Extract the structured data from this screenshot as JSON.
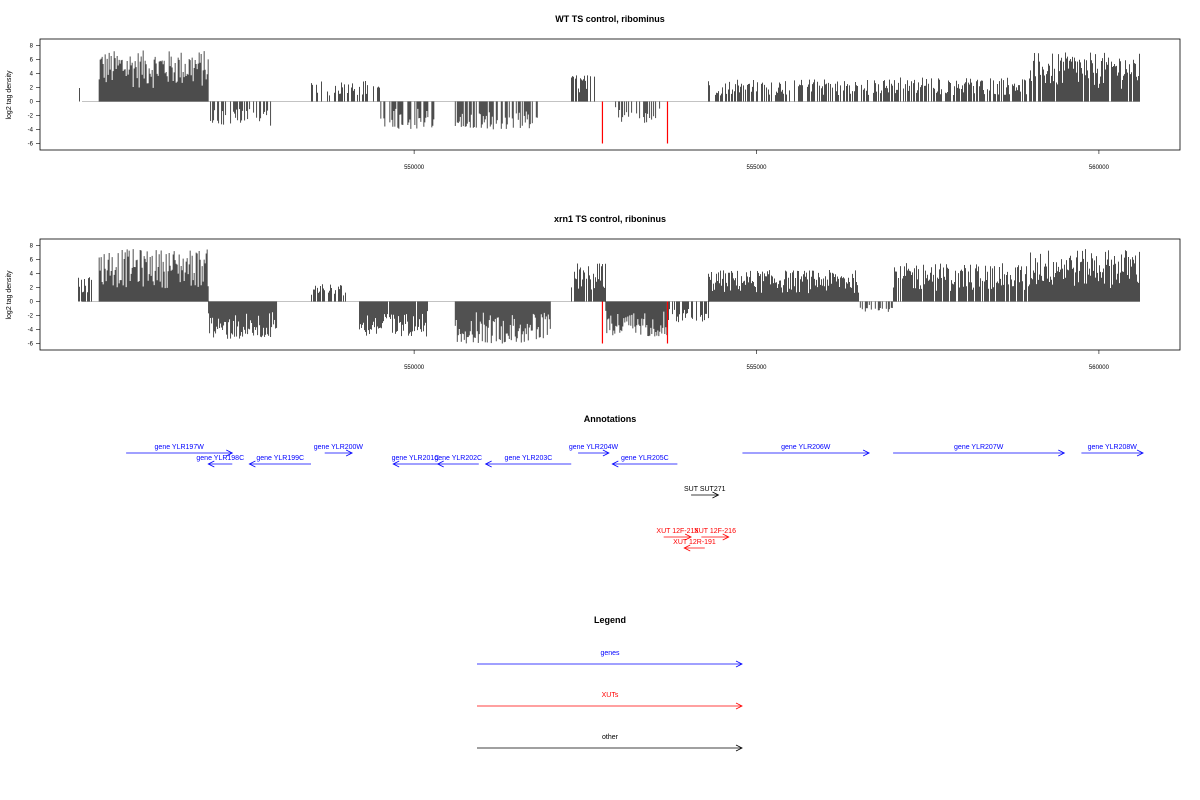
{
  "chart_data": [
    {
      "type": "bar",
      "title": "WT TS control, ribominus",
      "ylabel": "log2 tag density",
      "ylim": [
        -6.5,
        8.5
      ],
      "yticks": [
        -6,
        -4,
        -2,
        0,
        2,
        4,
        6,
        8
      ],
      "xlim": [
        544500,
        561100
      ],
      "xticks": [
        550000,
        555000,
        560000
      ],
      "xtick_labels": [
        "550000",
        "555000",
        "560000"
      ],
      "grid": false,
      "highlight_color": "#ff0000",
      "bar_color": "#000000",
      "highlights": [
        {
          "x": 552750,
          "y": -6
        },
        {
          "x": 553700,
          "y": -6
        }
      ],
      "segments": [
        {
          "start": 545100,
          "end": 545150,
          "sign": 1,
          "max": 2.5,
          "density": 0.4
        },
        {
          "start": 545400,
          "end": 547000,
          "sign": 1,
          "max": 7.3,
          "density": 1.0
        },
        {
          "start": 547000,
          "end": 548000,
          "sign": -1,
          "max": 3.5,
          "density": 0.6
        },
        {
          "start": 548500,
          "end": 549500,
          "sign": 1,
          "max": 3.0,
          "density": 0.4
        },
        {
          "start": 549500,
          "end": 550300,
          "sign": -1,
          "max": 4.0,
          "density": 0.5
        },
        {
          "start": 550600,
          "end": 551800,
          "sign": -1,
          "max": 4.0,
          "density": 0.7
        },
        {
          "start": 552300,
          "end": 552650,
          "sign": 1,
          "max": 3.8,
          "density": 0.6
        },
        {
          "start": 552900,
          "end": 553600,
          "sign": -1,
          "max": 3.2,
          "density": 0.3
        },
        {
          "start": 554300,
          "end": 557000,
          "sign": 1,
          "max": 3.2,
          "density": 0.6
        },
        {
          "start": 557000,
          "end": 559000,
          "sign": 1,
          "max": 3.5,
          "density": 0.7
        },
        {
          "start": 559000,
          "end": 560600,
          "sign": 1,
          "max": 7.0,
          "density": 0.9
        }
      ]
    },
    {
      "type": "bar",
      "title": "xrn1 TS control, riboninus",
      "ylabel": "log2 tag density",
      "ylim": [
        -6.5,
        8.5
      ],
      "yticks": [
        -6,
        -4,
        -2,
        0,
        2,
        4,
        6,
        8
      ],
      "xlim": [
        544500,
        561100
      ],
      "xticks": [
        550000,
        555000,
        560000
      ],
      "xtick_labels": [
        "550000",
        "555000",
        "560000"
      ],
      "grid": false,
      "highlight_color": "#ff0000",
      "bar_color": "#000000",
      "highlights": [
        {
          "x": 552750,
          "y": -6
        },
        {
          "x": 553700,
          "y": -6
        }
      ],
      "segments": [
        {
          "start": 545100,
          "end": 545300,
          "sign": 1,
          "max": 3.5,
          "density": 0.5
        },
        {
          "start": 545400,
          "end": 547000,
          "sign": 1,
          "max": 7.5,
          "density": 1.0
        },
        {
          "start": 547000,
          "end": 548000,
          "sign": -1,
          "max": 5.5,
          "density": 1.0
        },
        {
          "start": 548500,
          "end": 549000,
          "sign": 1,
          "max": 2.5,
          "density": 0.6
        },
        {
          "start": 549200,
          "end": 550200,
          "sign": -1,
          "max": 5.0,
          "density": 0.9
        },
        {
          "start": 550600,
          "end": 552000,
          "sign": -1,
          "max": 6.0,
          "density": 1.0
        },
        {
          "start": 552300,
          "end": 552800,
          "sign": 1,
          "max": 5.5,
          "density": 0.9
        },
        {
          "start": 552800,
          "end": 553700,
          "sign": -1,
          "max": 5.0,
          "density": 1.0
        },
        {
          "start": 553700,
          "end": 554300,
          "sign": -1,
          "max": 3.0,
          "density": 0.6
        },
        {
          "start": 554300,
          "end": 556500,
          "sign": 1,
          "max": 4.5,
          "density": 1.0
        },
        {
          "start": 556500,
          "end": 557000,
          "sign": -1,
          "max": 1.5,
          "density": 0.3
        },
        {
          "start": 557000,
          "end": 559000,
          "sign": 1,
          "max": 5.5,
          "density": 0.9
        },
        {
          "start": 559000,
          "end": 560600,
          "sign": 1,
          "max": 7.5,
          "density": 1.0
        }
      ]
    }
  ],
  "annotations": {
    "title": "Annotations",
    "genes_color": "#0000ff",
    "xuts_color": "#ff0000",
    "other_color": "#000000",
    "features": [
      {
        "label": "gene YLR197W",
        "start": 545400,
        "end": 546950,
        "strand": "+",
        "track": "genes",
        "row": 0
      },
      {
        "label": "gene YLR198C",
        "start": 546600,
        "end": 546950,
        "strand": "-",
        "track": "genes",
        "row": 1
      },
      {
        "label": "gene YLR199C",
        "start": 547200,
        "end": 548100,
        "strand": "-",
        "track": "genes",
        "row": 1
      },
      {
        "label": "gene YLR200W",
        "start": 548300,
        "end": 548700,
        "strand": "+",
        "track": "genes",
        "row": 0
      },
      {
        "label": "gene YLR201C",
        "start": 549300,
        "end": 549950,
        "strand": "-",
        "track": "genes",
        "row": 1
      },
      {
        "label": "gene YLR202C",
        "start": 549950,
        "end": 550550,
        "strand": "-",
        "track": "genes",
        "row": 1
      },
      {
        "label": "gene YLR203C",
        "start": 550650,
        "end": 551900,
        "strand": "-",
        "track": "genes",
        "row": 1
      },
      {
        "label": "gene YLR204W",
        "start": 552000,
        "end": 552450,
        "strand": "+",
        "track": "genes",
        "row": 0
      },
      {
        "label": "gene YLR205C",
        "start": 552500,
        "end": 553450,
        "strand": "-",
        "track": "genes",
        "row": 1
      },
      {
        "label": "gene YLR206W",
        "start": 554400,
        "end": 556250,
        "strand": "+",
        "track": "genes",
        "row": 0
      },
      {
        "label": "gene YLR207W",
        "start": 556600,
        "end": 559100,
        "strand": "+",
        "track": "genes",
        "row": 0
      },
      {
        "label": "gene YLR208W",
        "start": 559350,
        "end": 560250,
        "strand": "+",
        "track": "genes",
        "row": 0
      },
      {
        "label": "SUT SUT271",
        "start": 553650,
        "end": 554050,
        "strand": "+",
        "track": "other",
        "row": 2
      },
      {
        "label": "XUT 12F-215",
        "start": 553250,
        "end": 553650,
        "strand": "+",
        "track": "xuts",
        "row": 3
      },
      {
        "label": "XUT 12F-216",
        "start": 553800,
        "end": 554200,
        "strand": "+",
        "track": "xuts",
        "row": 3
      },
      {
        "label": "XUT 12R-191",
        "start": 553550,
        "end": 553850,
        "strand": "-",
        "track": "xuts",
        "row": 4
      }
    ]
  },
  "legend": {
    "title": "Legend",
    "items": [
      {
        "label": "genes",
        "color": "#0000ff"
      },
      {
        "label": "XUTs",
        "color": "#ff0000"
      },
      {
        "label": "other",
        "color": "#000000"
      }
    ]
  }
}
